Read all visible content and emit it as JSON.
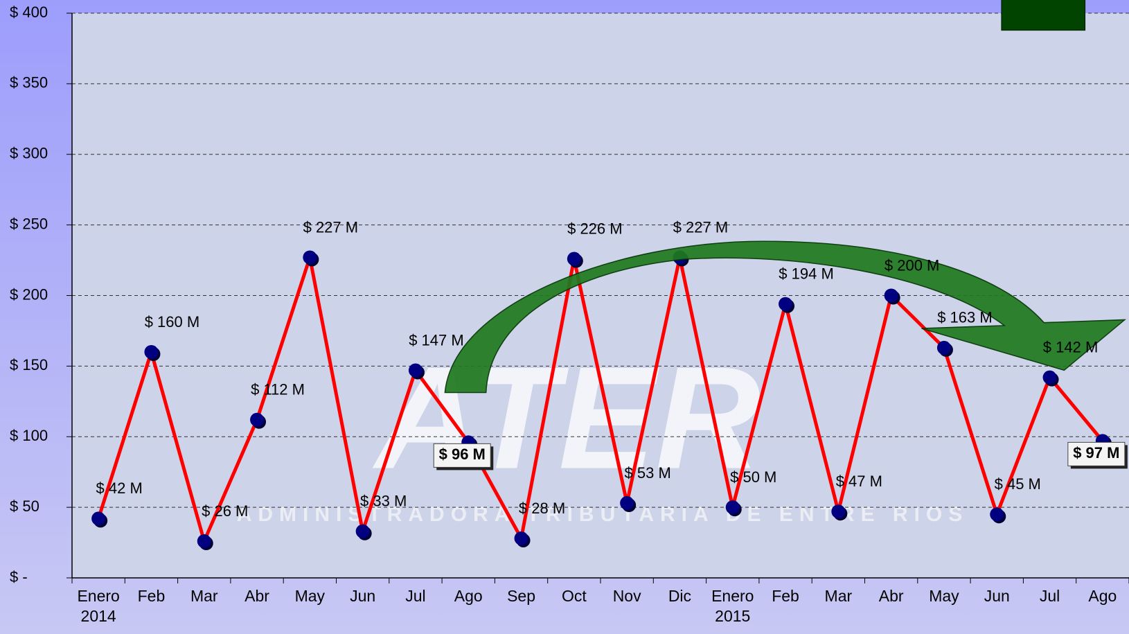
{
  "chart_data": {
    "type": "line",
    "watermark": {
      "title": "ATER",
      "subtitle": "ADMINISTRADORA TRIBUTARIA DE ENTRE RIOS"
    },
    "categories": [
      "Enero\n2014",
      "Feb",
      "Mar",
      "Abr",
      "May",
      "Jun",
      "Jul",
      "Ago",
      "Sep",
      "Oct",
      "Nov",
      "Dic",
      "Enero\n2015",
      "Feb",
      "Mar",
      "Abr",
      "May",
      "Jun",
      "Jul",
      "Ago"
    ],
    "values": [
      42,
      160,
      26,
      112,
      227,
      33,
      147,
      96,
      28,
      226,
      53,
      227,
      50,
      194,
      47,
      200,
      163,
      45,
      142,
      97
    ],
    "value_labels": [
      "$ 42 M",
      "$ 160 M",
      "$ 26 M",
      "$ 112 M",
      "$ 227 M",
      "$ 33 M",
      "$ 147 M",
      "$ 96 M",
      "$ 28 M",
      "$ 226 M",
      "$ 53 M",
      "$ 227 M",
      "$ 50 M",
      "$ 194 M",
      "$ 47 M",
      "$ 200 M",
      "$ 163 M",
      "$ 45 M",
      "$ 142 M",
      "$ 97 M"
    ],
    "highlighted": [
      7,
      19
    ],
    "color": "#ff0000",
    "marker_color": "#000080",
    "ylim": [
      0,
      400
    ],
    "yticks": [
      {
        "value": 0,
        "label": "$ -"
      },
      {
        "value": 50,
        "label": "$ 50"
      },
      {
        "value": 100,
        "label": "$ 100"
      },
      {
        "value": 150,
        "label": "$ 150"
      },
      {
        "value": 200,
        "label": "$ 200"
      },
      {
        "value": 250,
        "label": "$ 250"
      },
      {
        "value": 300,
        "label": "$ 300"
      },
      {
        "value": 350,
        "label": "$ 350"
      },
      {
        "value": 400,
        "label": "$ 400"
      }
    ],
    "grid": true
  }
}
